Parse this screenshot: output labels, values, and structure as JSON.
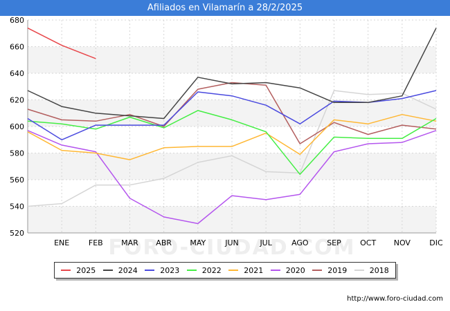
{
  "chart_data": {
    "type": "line",
    "title": "Afiliados en Vilamarín a 28/2/2025",
    "categories": [
      "",
      "ENE",
      "FEB",
      "MAR",
      "ABR",
      "MAY",
      "JUN",
      "JUL",
      "AGO",
      "SEP",
      "OCT",
      "NOV",
      "DIC"
    ],
    "ylim": [
      520,
      680
    ],
    "yticks": [
      520,
      540,
      560,
      580,
      600,
      620,
      640,
      660,
      680
    ],
    "grid": true,
    "legend_position": "bottom",
    "watermark": "FORO-CIUDAD.COM",
    "series": [
      {
        "name": "2025",
        "color": "#e8474b",
        "values": [
          674,
          661,
          651,
          null,
          null,
          null,
          null,
          null,
          null,
          null,
          null,
          null,
          null
        ]
      },
      {
        "name": "2024",
        "color": "#444444",
        "values": [
          627,
          615,
          610,
          608,
          606,
          637,
          632,
          633,
          629,
          618,
          618,
          623,
          674
        ]
      },
      {
        "name": "2023",
        "color": "#4a4adf",
        "values": [
          606,
          590,
          601,
          601,
          601,
          626,
          623,
          616,
          602,
          619,
          618,
          621,
          627
        ]
      },
      {
        "name": "2022",
        "color": "#44ee44",
        "values": [
          604,
          602,
          598,
          607,
          599,
          612,
          605,
          596,
          564,
          592,
          591,
          591,
          606
        ]
      },
      {
        "name": "2021",
        "color": "#ffb733",
        "values": [
          596,
          582,
          580,
          575,
          584,
          585,
          585,
          595,
          579,
          605,
          602,
          609,
          604
        ]
      },
      {
        "name": "2020",
        "color": "#b455ee",
        "values": [
          597,
          586,
          581,
          546,
          532,
          527,
          548,
          545,
          549,
          581,
          587,
          588,
          597
        ]
      },
      {
        "name": "2019",
        "color": "#b35e5e",
        "values": [
          613,
          605,
          604,
          609,
          600,
          628,
          633,
          631,
          587,
          603,
          594,
          601,
          598
        ]
      },
      {
        "name": "2018",
        "color": "#d5d5d5",
        "values": [
          540,
          542,
          556,
          556,
          561,
          573,
          578,
          566,
          565,
          627,
          624,
          625,
          613
        ]
      }
    ]
  },
  "footer": {
    "source": "http://www.foro-ciudad.com"
  }
}
